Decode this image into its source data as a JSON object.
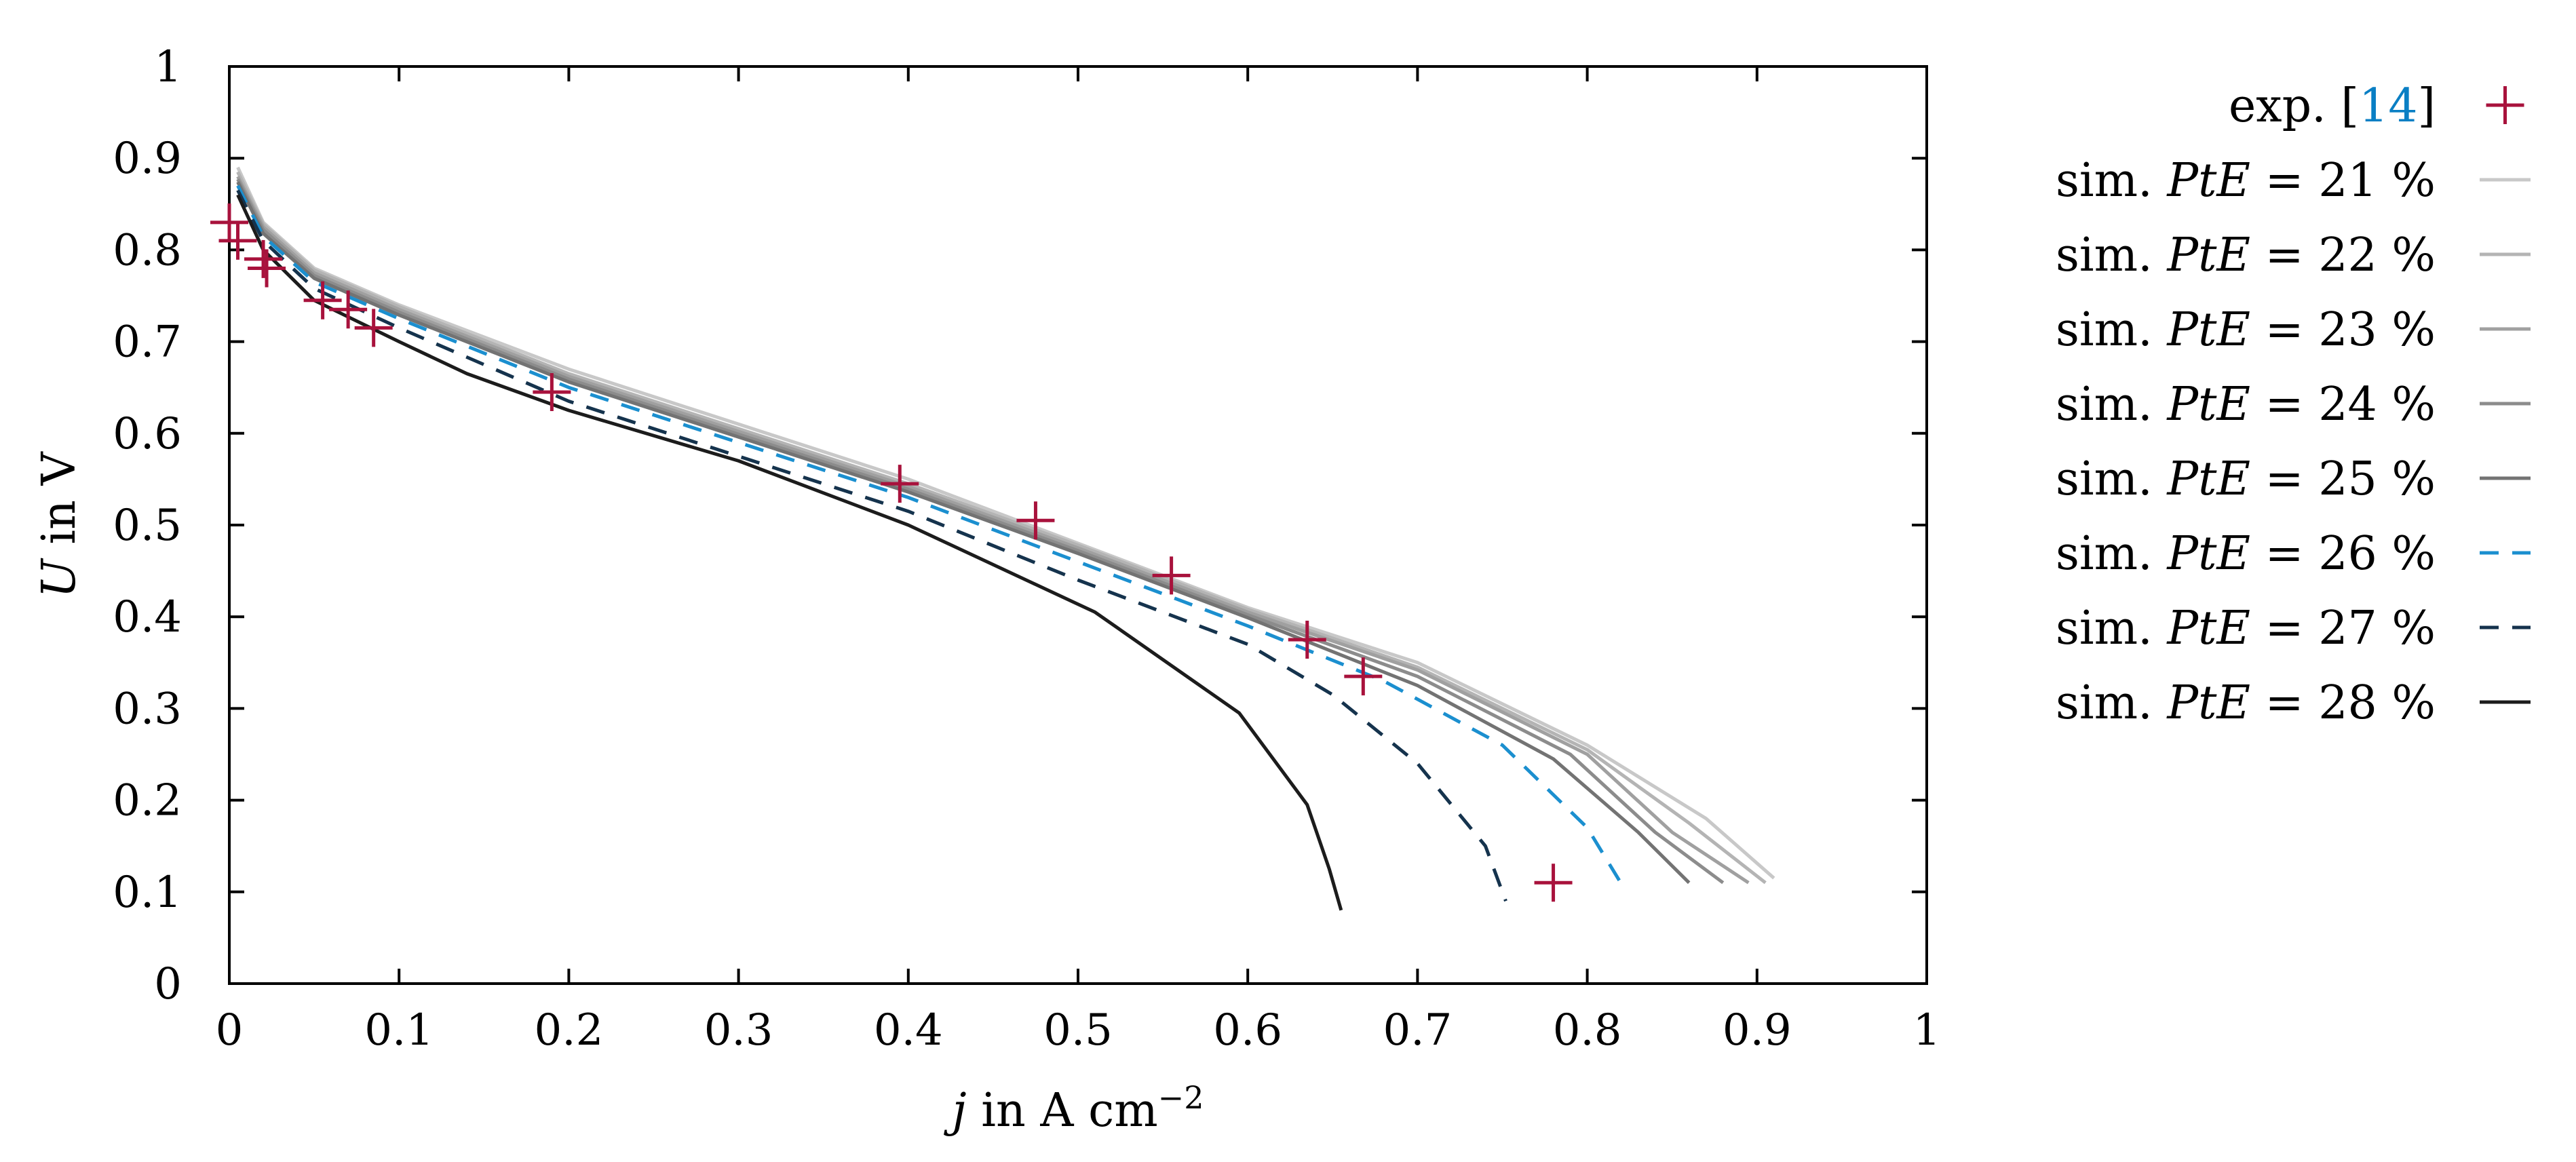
{
  "chart_data": {
    "type": "line",
    "xlabel": {
      "var": "j",
      "text": " in A cm",
      "sup": "−2"
    },
    "ylabel": {
      "var": "U",
      "text": " in V"
    },
    "xlim": [
      0,
      1
    ],
    "ylim": [
      0,
      1
    ],
    "xticks": [
      0,
      0.1,
      0.2,
      0.3,
      0.4,
      0.5,
      0.6,
      0.7,
      0.8,
      0.9,
      1
    ],
    "yticks": [
      0,
      0.1,
      0.2,
      0.3,
      0.4,
      0.5,
      0.6,
      0.7,
      0.8,
      0.9,
      1
    ],
    "xtick_labels": [
      "0",
      "0.1",
      "0.2",
      "0.3",
      "0.4",
      "0.5",
      "0.6",
      "0.7",
      "0.8",
      "0.9",
      "1"
    ],
    "ytick_labels": [
      "0",
      "0.1",
      "0.2",
      "0.3",
      "0.4",
      "0.5",
      "0.6",
      "0.7",
      "0.8",
      "0.9",
      "1"
    ],
    "grid": false,
    "legend_position": "outside-right",
    "experiment": {
      "label_prefix": "exp. [",
      "label_ref": "14",
      "label_suffix": "]",
      "color": "#a8123c",
      "ref_color": "#0a7fc4",
      "marker": "+",
      "points": [
        [
          0.0,
          0.83
        ],
        [
          0.005,
          0.81
        ],
        [
          0.02,
          0.79
        ],
        [
          0.022,
          0.78
        ],
        [
          0.055,
          0.745
        ],
        [
          0.07,
          0.735
        ],
        [
          0.085,
          0.715
        ],
        [
          0.19,
          0.645
        ],
        [
          0.395,
          0.545
        ],
        [
          0.475,
          0.505
        ],
        [
          0.555,
          0.445
        ],
        [
          0.635,
          0.375
        ],
        [
          0.668,
          0.335
        ],
        [
          0.78,
          0.11
        ]
      ]
    },
    "series": [
      {
        "name": "sim.",
        "var": "PtE",
        "value": "= 21 %",
        "color": "#c8c8c8",
        "dash": "solid",
        "x": [
          0.005,
          0.02,
          0.05,
          0.1,
          0.2,
          0.3,
          0.4,
          0.5,
          0.6,
          0.7,
          0.8,
          0.87,
          0.91
        ],
        "y": [
          0.89,
          0.83,
          0.78,
          0.74,
          0.67,
          0.61,
          0.55,
          0.48,
          0.41,
          0.35,
          0.26,
          0.18,
          0.115
        ]
      },
      {
        "name": "sim.",
        "var": "PtE",
        "value": "= 22 %",
        "color": "#b4b4b4",
        "dash": "solid",
        "x": [
          0.005,
          0.02,
          0.05,
          0.1,
          0.2,
          0.3,
          0.4,
          0.5,
          0.6,
          0.7,
          0.8,
          0.86,
          0.905
        ],
        "y": [
          0.885,
          0.828,
          0.778,
          0.738,
          0.665,
          0.605,
          0.545,
          0.478,
          0.408,
          0.345,
          0.255,
          0.175,
          0.11
        ]
      },
      {
        "name": "sim.",
        "var": "PtE",
        "value": "= 23 %",
        "color": "#a0a0a0",
        "dash": "solid",
        "x": [
          0.005,
          0.02,
          0.05,
          0.1,
          0.2,
          0.3,
          0.4,
          0.5,
          0.6,
          0.7,
          0.8,
          0.85,
          0.895
        ],
        "y": [
          0.88,
          0.825,
          0.775,
          0.735,
          0.662,
          0.602,
          0.542,
          0.475,
          0.405,
          0.342,
          0.25,
          0.165,
          0.11
        ]
      },
      {
        "name": "sim.",
        "var": "PtE",
        "value": "= 24 %",
        "color": "#8c8c8c",
        "dash": "solid",
        "x": [
          0.005,
          0.02,
          0.05,
          0.1,
          0.2,
          0.3,
          0.4,
          0.5,
          0.6,
          0.7,
          0.79,
          0.84,
          0.88
        ],
        "y": [
          0.877,
          0.822,
          0.772,
          0.732,
          0.659,
          0.599,
          0.539,
          0.472,
          0.402,
          0.335,
          0.25,
          0.165,
          0.11
        ]
      },
      {
        "name": "sim.",
        "var": "PtE",
        "value": "= 25 %",
        "color": "#737373",
        "dash": "solid",
        "x": [
          0.005,
          0.02,
          0.05,
          0.1,
          0.2,
          0.3,
          0.4,
          0.5,
          0.6,
          0.7,
          0.78,
          0.83,
          0.86
        ],
        "y": [
          0.874,
          0.818,
          0.769,
          0.729,
          0.656,
          0.596,
          0.536,
          0.469,
          0.399,
          0.325,
          0.245,
          0.165,
          0.11
        ]
      },
      {
        "name": "sim.",
        "var": "PtE",
        "value": "= 26 %",
        "color": "#1b8fcf",
        "dash": "dashed",
        "x": [
          0.005,
          0.02,
          0.05,
          0.1,
          0.2,
          0.3,
          0.4,
          0.5,
          0.6,
          0.68,
          0.75,
          0.8,
          0.823
        ],
        "y": [
          0.87,
          0.815,
          0.765,
          0.725,
          0.65,
          0.59,
          0.53,
          0.46,
          0.39,
          0.33,
          0.26,
          0.17,
          0.1
        ]
      },
      {
        "name": "sim.",
        "var": "PtE",
        "value": "= 27 %",
        "color": "#15334d",
        "dash": "dashed",
        "x": [
          0.005,
          0.02,
          0.05,
          0.1,
          0.2,
          0.3,
          0.4,
          0.5,
          0.6,
          0.65,
          0.7,
          0.74,
          0.752
        ],
        "y": [
          0.865,
          0.81,
          0.758,
          0.715,
          0.635,
          0.575,
          0.515,
          0.44,
          0.37,
          0.315,
          0.24,
          0.15,
          0.09
        ]
      },
      {
        "name": "sim.",
        "var": "PtE",
        "value": "= 28 %",
        "color": "#1c1c1c",
        "dash": "solid",
        "x": [
          0.005,
          0.02,
          0.05,
          0.1,
          0.14,
          0.2,
          0.3,
          0.4,
          0.51,
          0.595,
          0.635,
          0.648,
          0.655
        ],
        "y": [
          0.86,
          0.8,
          0.745,
          0.7,
          0.665,
          0.625,
          0.57,
          0.5,
          0.405,
          0.295,
          0.195,
          0.125,
          0.08
        ]
      }
    ]
  }
}
